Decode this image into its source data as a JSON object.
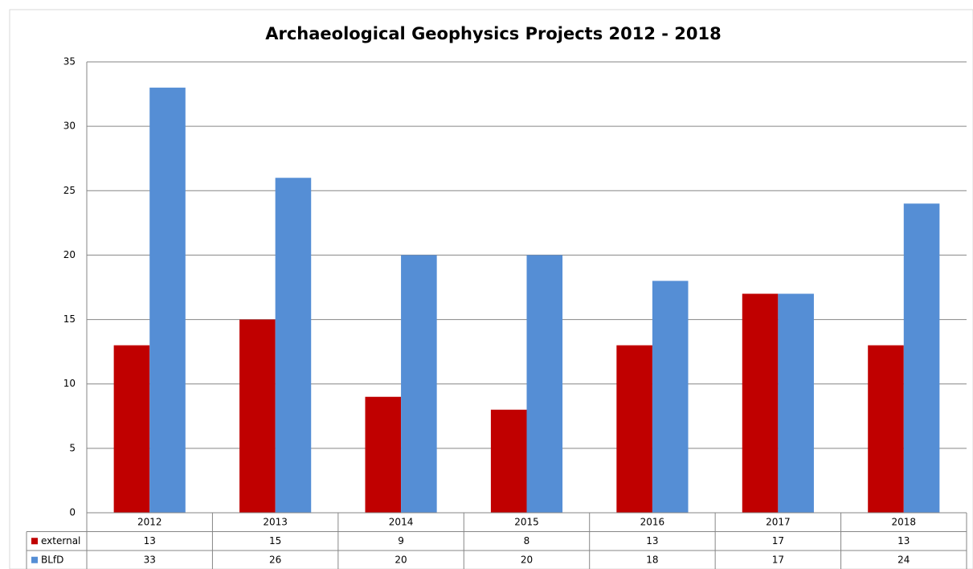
{
  "chart_data": {
    "type": "bar",
    "title": "Archaeological Geophysics Projects 2012 - 2018",
    "categories": [
      "2012",
      "2013",
      "2014",
      "2015",
      "2016",
      "2017",
      "2018"
    ],
    "series": [
      {
        "name": "external",
        "color": "#c00000",
        "values": [
          13,
          15,
          9,
          8,
          13,
          17,
          13
        ]
      },
      {
        "name": "BLfD",
        "color": "#558ed5",
        "values": [
          33,
          26,
          20,
          20,
          18,
          17,
          24
        ]
      }
    ],
    "ylim": [
      0,
      35
    ],
    "yticks": [
      0,
      5,
      10,
      15,
      20,
      25,
      30,
      35
    ],
    "grid": true
  }
}
